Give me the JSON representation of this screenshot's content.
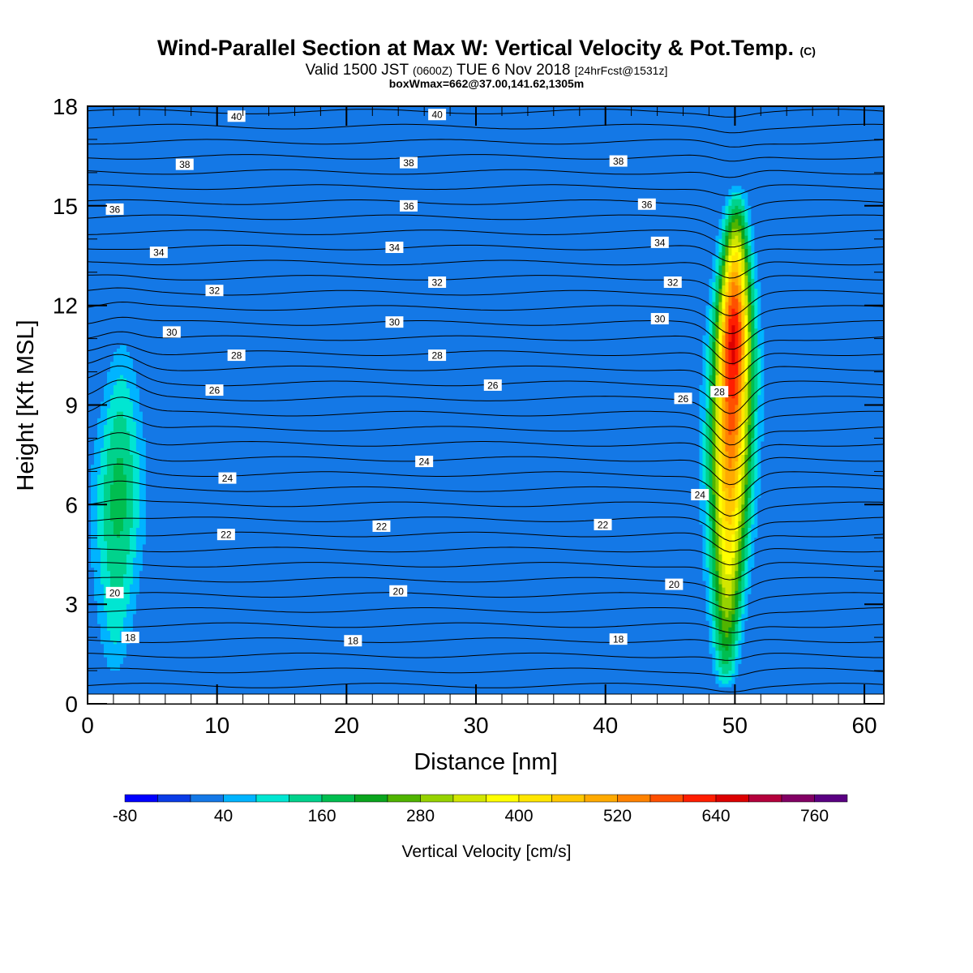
{
  "header": {
    "title": "Wind-Parallel Section at Max W: Vertical Velocity & Pot.Temp.",
    "copyright": "(C)",
    "valid_main": "Valid 1500 JST",
    "valid_utc": "(0600Z)",
    "valid_date": "TUE 6 Nov 2018",
    "forecast": "[24hrFcst@1531z]",
    "box_info": "boxWmax=662@37.00,141.62,1305m"
  },
  "chart_data": {
    "type": "heatmap",
    "xlabel": "Distance [nm]",
    "ylabel": "Height [Kft MSL]",
    "xlim": [
      0,
      61.5
    ],
    "ylim": [
      0,
      18
    ],
    "x_ticks": [
      "0",
      "10",
      "20",
      "30",
      "40",
      "50",
      "60"
    ],
    "y_ticks": [
      "0",
      "3",
      "6",
      "9",
      "12",
      "15",
      "18"
    ],
    "colorbar": {
      "label": "Vertical Velocity [cm/s]",
      "tick_labels": [
        "-80",
        "40",
        "160",
        "280",
        "400",
        "520",
        "640",
        "760"
      ],
      "levels": [
        -80,
        -40,
        0,
        40,
        80,
        120,
        160,
        200,
        240,
        280,
        320,
        360,
        400,
        440,
        480,
        520,
        560,
        600,
        640,
        680,
        720,
        760,
        800
      ],
      "colors": [
        "#0000ff",
        "#0a3ce6",
        "#1478e6",
        "#00b4ff",
        "#00e6d2",
        "#00d28c",
        "#00be50",
        "#0aa51e",
        "#50b400",
        "#96d200",
        "#d2e600",
        "#ffff00",
        "#ffe600",
        "#ffc800",
        "#ffaa00",
        "#ff8200",
        "#ff5000",
        "#ff1e00",
        "#dc0000",
        "#b4003c",
        "#820064",
        "#5a0082"
      ]
    },
    "velocity_features": [
      {
        "x_center": 49.7,
        "x_halfwidth": 1.9,
        "y_bottom": 0.7,
        "y_top": 15.2,
        "peak_velocity": 662,
        "peak_height": 10.8
      },
      {
        "x_center": 2.5,
        "x_halfwidth": 2.3,
        "y_bottom": 0.9,
        "y_top": 11.0,
        "peak_velocity": 180,
        "peak_height": 6.0
      }
    ],
    "theta_labels": [
      {
        "text": "40",
        "x": 11.5,
        "y": 17.7
      },
      {
        "text": "40",
        "x": 27.0,
        "y": 17.75
      },
      {
        "text": "38",
        "x": 7.5,
        "y": 16.25
      },
      {
        "text": "38",
        "x": 24.8,
        "y": 16.3
      },
      {
        "text": "38",
        "x": 41.0,
        "y": 16.35
      },
      {
        "text": "36",
        "x": 2.1,
        "y": 14.9
      },
      {
        "text": "36",
        "x": 24.8,
        "y": 15.0
      },
      {
        "text": "36",
        "x": 43.2,
        "y": 15.05
      },
      {
        "text": "34",
        "x": 5.5,
        "y": 13.6
      },
      {
        "text": "34",
        "x": 23.7,
        "y": 13.75
      },
      {
        "text": "34",
        "x": 44.2,
        "y": 13.9
      },
      {
        "text": "32",
        "x": 9.8,
        "y": 12.45
      },
      {
        "text": "32",
        "x": 27.0,
        "y": 12.7
      },
      {
        "text": "32",
        "x": 45.2,
        "y": 12.7
      },
      {
        "text": "30",
        "x": 6.5,
        "y": 11.2
      },
      {
        "text": "30",
        "x": 23.7,
        "y": 11.5
      },
      {
        "text": "30",
        "x": 44.2,
        "y": 11.6
      },
      {
        "text": "28",
        "x": 11.5,
        "y": 10.5
      },
      {
        "text": "28",
        "x": 27.0,
        "y": 10.5
      },
      {
        "text": "28",
        "x": 48.8,
        "y": 9.4
      },
      {
        "text": "26",
        "x": 9.8,
        "y": 9.45
      },
      {
        "text": "26",
        "x": 31.3,
        "y": 9.6
      },
      {
        "text": "26",
        "x": 46.0,
        "y": 9.2
      },
      {
        "text": "24",
        "x": 10.8,
        "y": 6.8
      },
      {
        "text": "24",
        "x": 26.0,
        "y": 7.3
      },
      {
        "text": "24",
        "x": 47.3,
        "y": 6.3
      },
      {
        "text": "22",
        "x": 10.7,
        "y": 5.1
      },
      {
        "text": "22",
        "x": 22.7,
        "y": 5.35
      },
      {
        "text": "22",
        "x": 39.8,
        "y": 5.4
      },
      {
        "text": "20",
        "x": 2.1,
        "y": 3.35
      },
      {
        "text": "20",
        "x": 24.0,
        "y": 3.4
      },
      {
        "text": "20",
        "x": 45.3,
        "y": 3.6
      },
      {
        "text": "18",
        "x": 3.3,
        "y": 2.0
      },
      {
        "text": "18",
        "x": 20.5,
        "y": 1.9
      },
      {
        "text": "18",
        "x": 41.0,
        "y": 1.95
      }
    ]
  }
}
